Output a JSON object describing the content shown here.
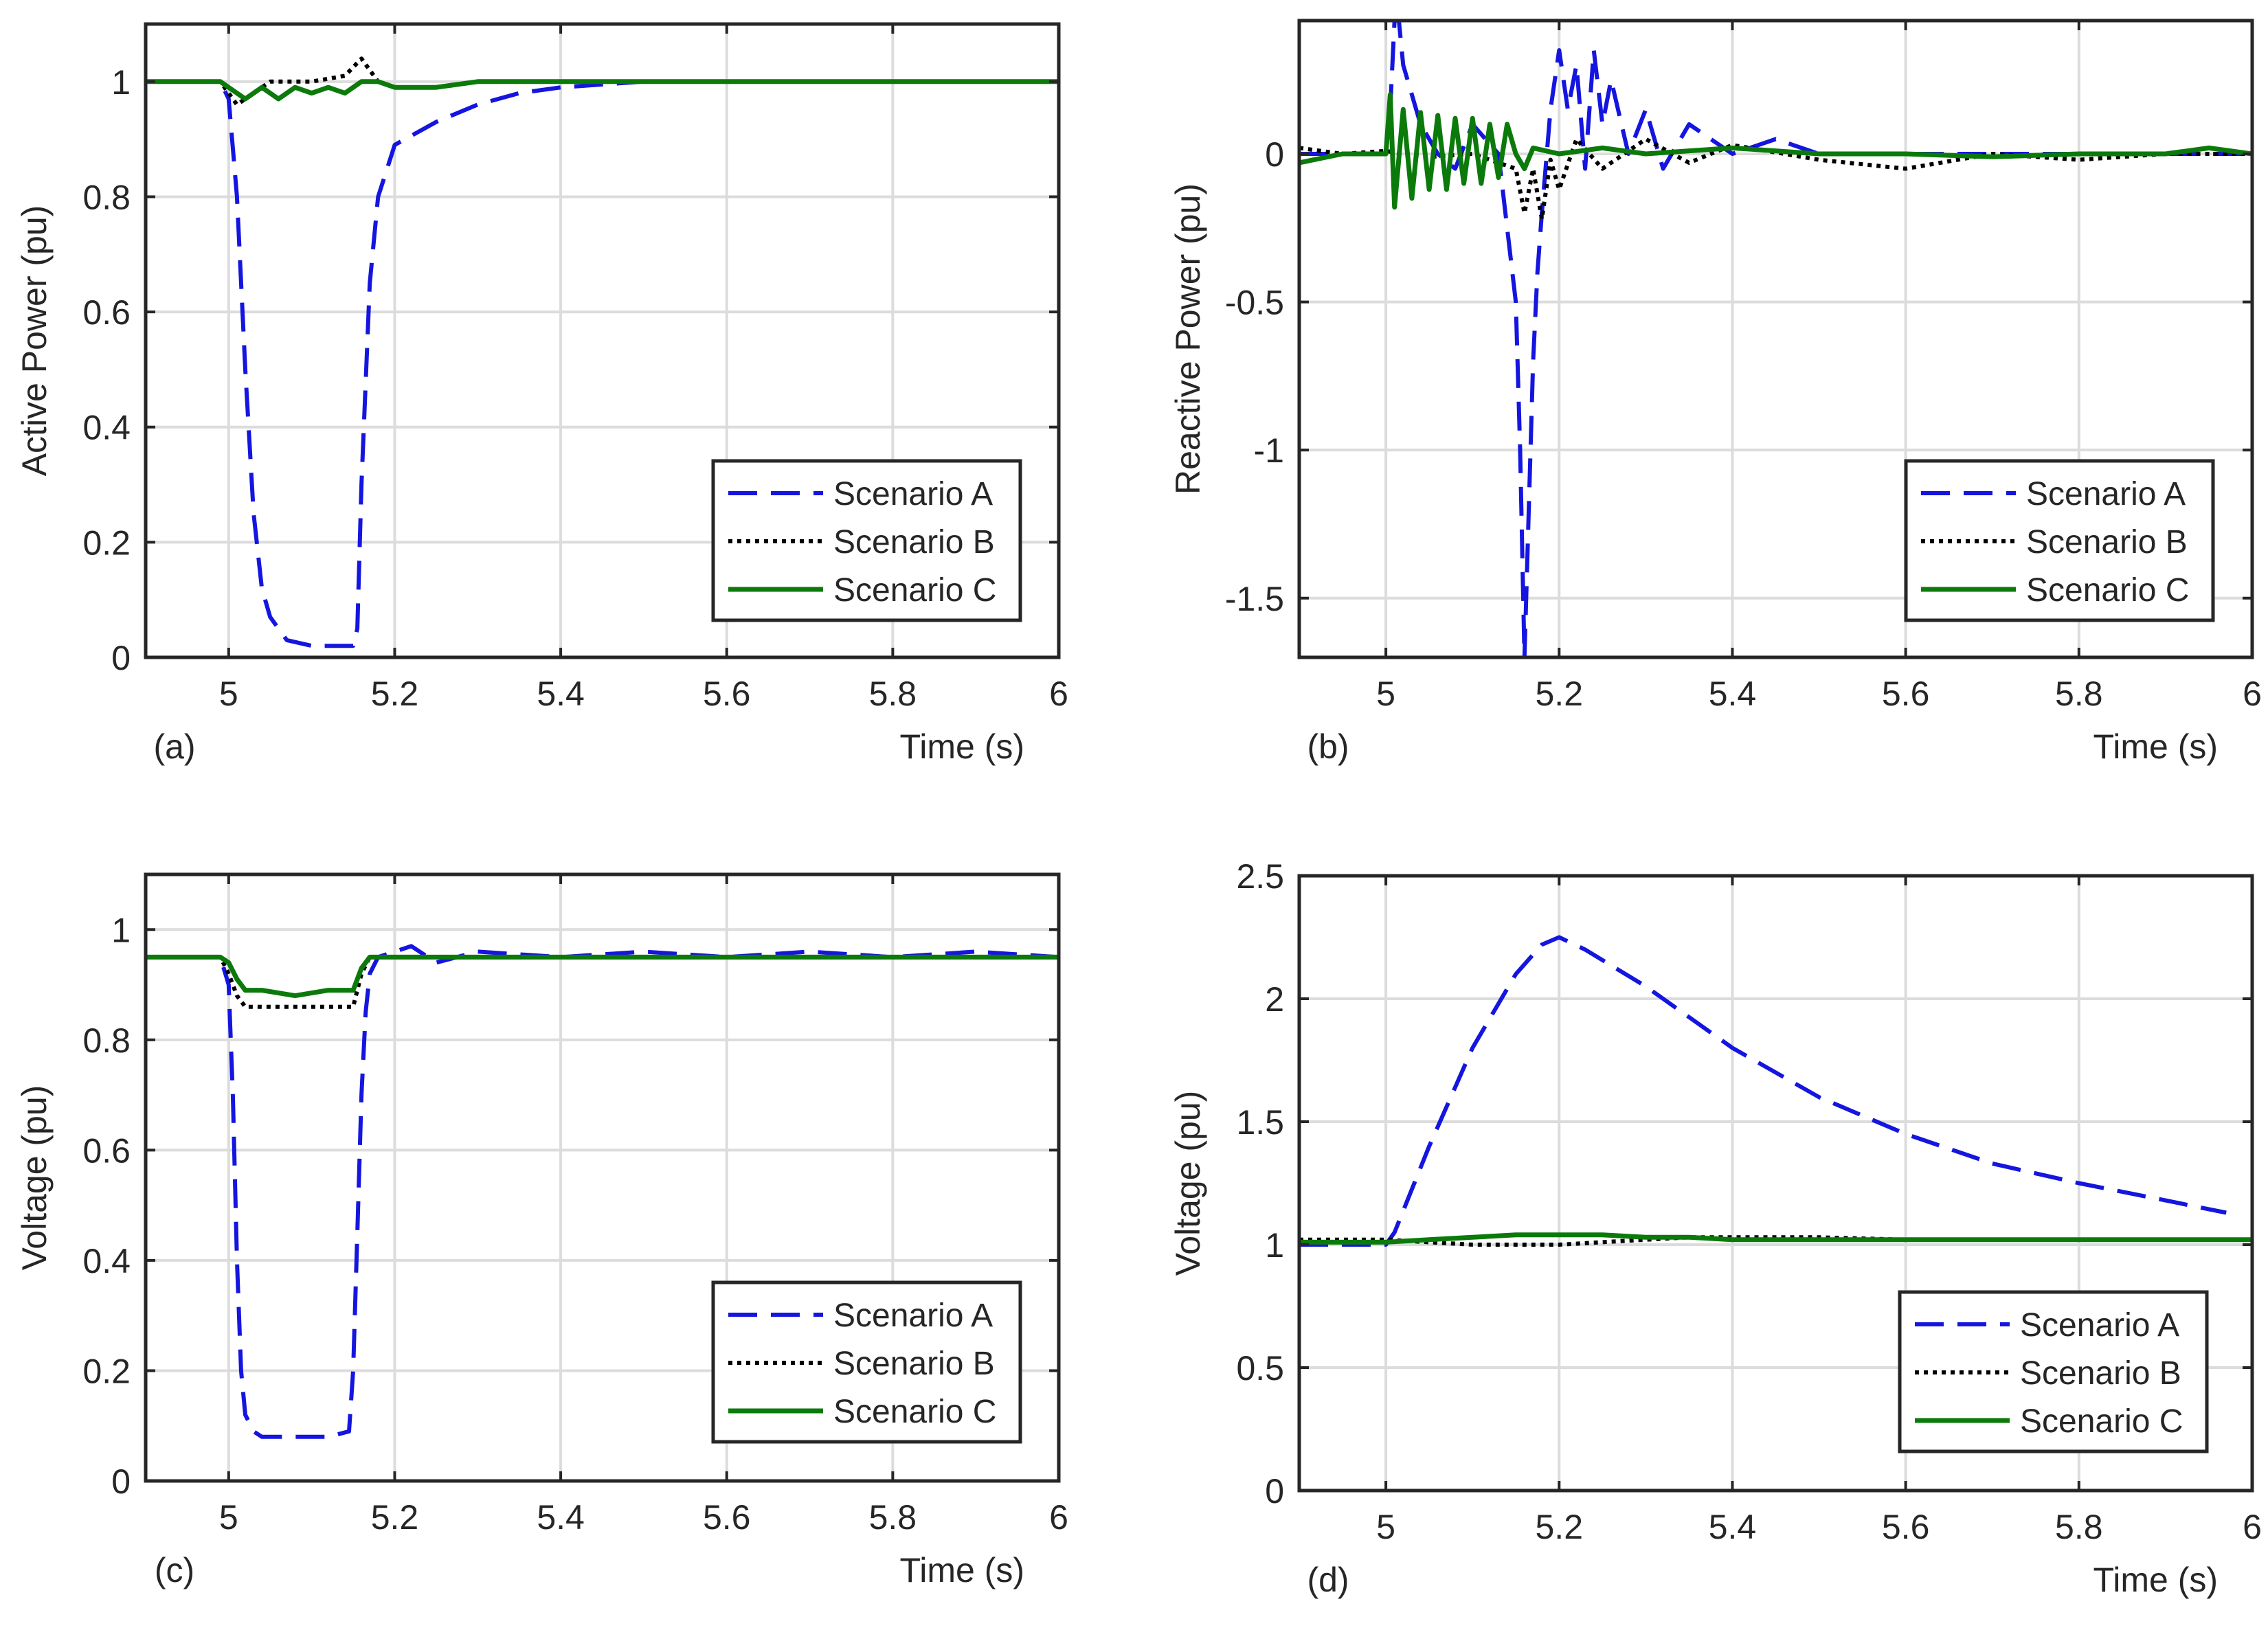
{
  "colors": {
    "scenario_a": "#1515e0",
    "scenario_b": "#000000",
    "scenario_c": "#0b7a0b",
    "grid": "#dcdcdc",
    "axes": "#262626"
  },
  "chart_data": [
    {
      "type": "line",
      "panel_label": "(a)",
      "xlabel": "Time (s)",
      "ylabel": "Active Power (pu)",
      "xlim": [
        4.9,
        6
      ],
      "ylim": [
        0,
        1.1
      ],
      "xticks": [
        5,
        5.2,
        5.4,
        5.6,
        5.8,
        6
      ],
      "xtick_labels": [
        "5",
        "5.2",
        "5.4",
        "5.6",
        "5.8",
        "6"
      ],
      "yticks": [
        0,
        0.2,
        0.4,
        0.6,
        0.8,
        1
      ],
      "ytick_labels": [
        "0",
        "0.2",
        "0.4",
        "0.6",
        "0.8",
        "1"
      ],
      "grid": true,
      "legend_position": "bottom-right",
      "series": [
        {
          "name": "Scenario A",
          "style": "dashed",
          "color": "scenario_a",
          "x": [
            4.9,
            4.99,
            5.0,
            5.01,
            5.02,
            5.03,
            5.04,
            5.05,
            5.07,
            5.1,
            5.13,
            5.15,
            5.155,
            5.16,
            5.17,
            5.18,
            5.2,
            5.25,
            5.3,
            5.35,
            5.4,
            5.5,
            5.6,
            5.7,
            5.8,
            5.9,
            6.0
          ],
          "y": [
            1.0,
            1.0,
            0.97,
            0.8,
            0.5,
            0.25,
            0.12,
            0.07,
            0.03,
            0.02,
            0.02,
            0.02,
            0.05,
            0.3,
            0.65,
            0.8,
            0.89,
            0.93,
            0.96,
            0.98,
            0.99,
            1.0,
            1.0,
            1.0,
            1.0,
            1.0,
            1.0
          ]
        },
        {
          "name": "Scenario B",
          "style": "dotted",
          "color": "scenario_b",
          "x": [
            4.9,
            4.99,
            5.0,
            5.01,
            5.02,
            5.05,
            5.1,
            5.14,
            5.16,
            5.17,
            5.18,
            5.2,
            5.25,
            5.3,
            5.4,
            5.5,
            5.6,
            5.7,
            5.8,
            5.9,
            6.0
          ],
          "y": [
            1.0,
            1.0,
            0.98,
            0.96,
            0.97,
            1.0,
            1.0,
            1.01,
            1.04,
            1.02,
            1.0,
            0.99,
            0.99,
            1.0,
            1.0,
            1.0,
            1.0,
            1.0,
            1.0,
            1.0,
            1.0
          ]
        },
        {
          "name": "Scenario C",
          "style": "solid",
          "color": "scenario_c",
          "x": [
            4.9,
            4.99,
            5.0,
            5.02,
            5.04,
            5.06,
            5.08,
            5.1,
            5.12,
            5.14,
            5.16,
            5.18,
            5.2,
            5.25,
            5.3,
            5.4,
            5.5,
            5.6,
            5.7,
            5.8,
            5.9,
            6.0
          ],
          "y": [
            1.0,
            1.0,
            0.99,
            0.97,
            0.99,
            0.97,
            0.99,
            0.98,
            0.99,
            0.98,
            1.0,
            1.0,
            0.99,
            0.99,
            1.0,
            1.0,
            1.0,
            1.0,
            1.0,
            1.0,
            1.0,
            1.0
          ]
        }
      ]
    },
    {
      "type": "line",
      "panel_label": "(b)",
      "xlabel": "Time (s)",
      "ylabel": "Reactive Power (pu)",
      "xlim": [
        4.9,
        6
      ],
      "ylim": [
        -1.7,
        0.45
      ],
      "xticks": [
        5,
        5.2,
        5.4,
        5.6,
        5.8,
        6
      ],
      "xtick_labels": [
        "5",
        "5.2",
        "5.4",
        "5.6",
        "5.8",
        "6"
      ],
      "yticks": [
        -1.5,
        -1,
        -0.5,
        0
      ],
      "ytick_labels": [
        "-1.5",
        "-1",
        "-0.5",
        "0"
      ],
      "grid": true,
      "legend_position": "bottom-right",
      "series": [
        {
          "name": "Scenario A",
          "style": "dashed",
          "color": "scenario_a",
          "x": [
            4.9,
            4.95,
            5.0,
            5.005,
            5.01,
            5.015,
            5.02,
            5.04,
            5.06,
            5.08,
            5.1,
            5.13,
            5.15,
            5.155,
            5.16,
            5.165,
            5.17,
            5.175,
            5.18,
            5.19,
            5.2,
            5.21,
            5.22,
            5.23,
            5.24,
            5.25,
            5.26,
            5.28,
            5.3,
            5.32,
            5.35,
            5.4,
            5.45,
            5.5,
            5.6,
            5.7,
            5.8,
            5.9,
            6.0
          ],
          "y": [
            0.0,
            0.0,
            0.0,
            0.15,
            0.45,
            0.45,
            0.3,
            0.1,
            0.0,
            -0.05,
            0.1,
            0.0,
            -0.5,
            -1.0,
            -1.7,
            -1.2,
            -0.7,
            -0.4,
            -0.2,
            0.15,
            0.35,
            0.15,
            0.3,
            -0.05,
            0.35,
            0.1,
            0.25,
            0.0,
            0.15,
            -0.05,
            0.1,
            0.0,
            0.05,
            0.0,
            0.0,
            0.0,
            0.0,
            0.0,
            0.0
          ]
        },
        {
          "name": "Scenario B",
          "style": "dotted",
          "color": "scenario_b",
          "x": [
            4.9,
            4.95,
            5.0,
            5.02,
            5.05,
            5.1,
            5.15,
            5.16,
            5.17,
            5.18,
            5.19,
            5.2,
            5.22,
            5.25,
            5.3,
            5.35,
            5.4,
            5.5,
            5.6,
            5.7,
            5.8,
            5.9,
            6.0
          ],
          "y": [
            0.02,
            0.0,
            0.01,
            0.0,
            -0.01,
            0.0,
            -0.05,
            -0.2,
            -0.05,
            -0.22,
            -0.02,
            -0.12,
            0.05,
            -0.05,
            0.05,
            -0.03,
            0.03,
            -0.02,
            -0.05,
            0.0,
            -0.02,
            0.0,
            0.0
          ]
        },
        {
          "name": "Scenario C",
          "style": "solid",
          "color": "scenario_c",
          "x": [
            4.9,
            4.95,
            5.0,
            5.005,
            5.01,
            5.02,
            5.03,
            5.04,
            5.05,
            5.06,
            5.07,
            5.08,
            5.09,
            5.1,
            5.11,
            5.12,
            5.13,
            5.14,
            5.15,
            5.16,
            5.17,
            5.2,
            5.25,
            5.3,
            5.4,
            5.5,
            5.6,
            5.7,
            5.8,
            5.9,
            5.95,
            6.0
          ],
          "y": [
            -0.03,
            0.0,
            0.0,
            0.2,
            -0.18,
            0.15,
            -0.15,
            0.14,
            -0.12,
            0.13,
            -0.12,
            0.12,
            -0.1,
            0.12,
            -0.1,
            0.1,
            -0.08,
            0.1,
            0.0,
            -0.05,
            0.02,
            0.0,
            0.02,
            0.0,
            0.02,
            0.0,
            0.0,
            -0.01,
            0.0,
            0.0,
            0.02,
            0.0
          ]
        }
      ]
    },
    {
      "type": "line",
      "panel_label": "(c)",
      "xlabel": "Time (s)",
      "ylabel": "Voltage (pu)",
      "xlim": [
        4.9,
        6
      ],
      "ylim": [
        0,
        1.1
      ],
      "xticks": [
        5,
        5.2,
        5.4,
        5.6,
        5.8,
        6
      ],
      "xtick_labels": [
        "5",
        "5.2",
        "5.4",
        "5.6",
        "5.8",
        "6"
      ],
      "yticks": [
        0,
        0.2,
        0.4,
        0.6,
        0.8,
        1
      ],
      "ytick_labels": [
        "0",
        "0.2",
        "0.4",
        "0.6",
        "0.8",
        "1"
      ],
      "grid": true,
      "legend_position": "bottom-right",
      "series": [
        {
          "name": "Scenario A",
          "style": "dashed",
          "color": "scenario_a",
          "x": [
            4.9,
            4.99,
            5.0,
            5.005,
            5.01,
            5.015,
            5.02,
            5.03,
            5.04,
            5.06,
            5.09,
            5.12,
            5.145,
            5.15,
            5.155,
            5.16,
            5.165,
            5.17,
            5.18,
            5.2,
            5.22,
            5.25,
            5.3,
            5.4,
            5.5,
            5.6,
            5.7,
            5.8,
            5.9,
            6.0
          ],
          "y": [
            0.95,
            0.95,
            0.9,
            0.7,
            0.4,
            0.2,
            0.12,
            0.09,
            0.08,
            0.08,
            0.08,
            0.08,
            0.09,
            0.2,
            0.45,
            0.7,
            0.85,
            0.92,
            0.95,
            0.96,
            0.97,
            0.94,
            0.96,
            0.95,
            0.96,
            0.95,
            0.96,
            0.95,
            0.96,
            0.95
          ]
        },
        {
          "name": "Scenario B",
          "style": "dotted",
          "color": "scenario_b",
          "x": [
            4.9,
            4.99,
            5.0,
            5.01,
            5.02,
            5.04,
            5.08,
            5.12,
            5.15,
            5.16,
            5.17,
            5.2,
            5.3,
            5.4,
            5.5,
            5.6,
            5.7,
            5.8,
            5.9,
            6.0
          ],
          "y": [
            0.95,
            0.95,
            0.92,
            0.88,
            0.86,
            0.86,
            0.86,
            0.86,
            0.86,
            0.92,
            0.95,
            0.95,
            0.95,
            0.95,
            0.95,
            0.95,
            0.95,
            0.95,
            0.95,
            0.95
          ]
        },
        {
          "name": "Scenario C",
          "style": "solid",
          "color": "scenario_c",
          "x": [
            4.9,
            4.99,
            5.0,
            5.01,
            5.02,
            5.04,
            5.08,
            5.12,
            5.15,
            5.16,
            5.17,
            5.2,
            5.3,
            5.4,
            5.5,
            5.6,
            5.7,
            5.8,
            5.9,
            6.0
          ],
          "y": [
            0.95,
            0.95,
            0.94,
            0.91,
            0.89,
            0.89,
            0.88,
            0.89,
            0.89,
            0.93,
            0.95,
            0.95,
            0.95,
            0.95,
            0.95,
            0.95,
            0.95,
            0.95,
            0.95,
            0.95
          ]
        }
      ]
    },
    {
      "type": "line",
      "panel_label": "(d)",
      "xlabel": "Time (s)",
      "ylabel": "Voltage (pu)",
      "xlim": [
        4.9,
        6
      ],
      "ylim": [
        0,
        2.5
      ],
      "xticks": [
        5,
        5.2,
        5.4,
        5.6,
        5.8,
        6
      ],
      "xtick_labels": [
        "5",
        "5.2",
        "5.4",
        "5.6",
        "5.8",
        "6"
      ],
      "yticks": [
        0,
        0.5,
        1,
        1.5,
        2,
        2.5
      ],
      "ytick_labels": [
        "0",
        "0.5",
        "1",
        "1.5",
        "2",
        "2.5"
      ],
      "grid": true,
      "legend_position": "bottom-right",
      "series": [
        {
          "name": "Scenario A",
          "style": "dashed",
          "color": "scenario_a",
          "x": [
            4.9,
            4.95,
            5.0,
            5.01,
            5.05,
            5.1,
            5.15,
            5.18,
            5.2,
            5.23,
            5.3,
            5.4,
            5.5,
            5.6,
            5.7,
            5.8,
            5.9,
            5.97
          ],
          "y": [
            1.0,
            1.0,
            1.0,
            1.05,
            1.4,
            1.8,
            2.1,
            2.22,
            2.25,
            2.2,
            2.05,
            1.8,
            1.6,
            1.45,
            1.33,
            1.25,
            1.18,
            1.13
          ]
        },
        {
          "name": "Scenario B",
          "style": "dotted",
          "color": "scenario_b",
          "x": [
            4.9,
            5.0,
            5.05,
            5.1,
            5.15,
            5.2,
            5.25,
            5.3,
            5.35,
            5.4,
            5.5,
            5.6,
            5.7,
            5.8,
            5.9,
            6.0
          ],
          "y": [
            1.02,
            1.02,
            1.01,
            1.0,
            1.0,
            1.0,
            1.01,
            1.02,
            1.03,
            1.03,
            1.03,
            1.02,
            1.02,
            1.02,
            1.02,
            1.02
          ]
        },
        {
          "name": "Scenario C",
          "style": "solid",
          "color": "scenario_c",
          "x": [
            4.9,
            5.0,
            5.05,
            5.1,
            5.15,
            5.2,
            5.25,
            5.3,
            5.35,
            5.4,
            5.5,
            5.6,
            5.7,
            5.8,
            5.9,
            6.0
          ],
          "y": [
            1.01,
            1.01,
            1.02,
            1.03,
            1.04,
            1.04,
            1.04,
            1.03,
            1.03,
            1.02,
            1.02,
            1.02,
            1.02,
            1.02,
            1.02,
            1.02
          ]
        }
      ]
    }
  ]
}
